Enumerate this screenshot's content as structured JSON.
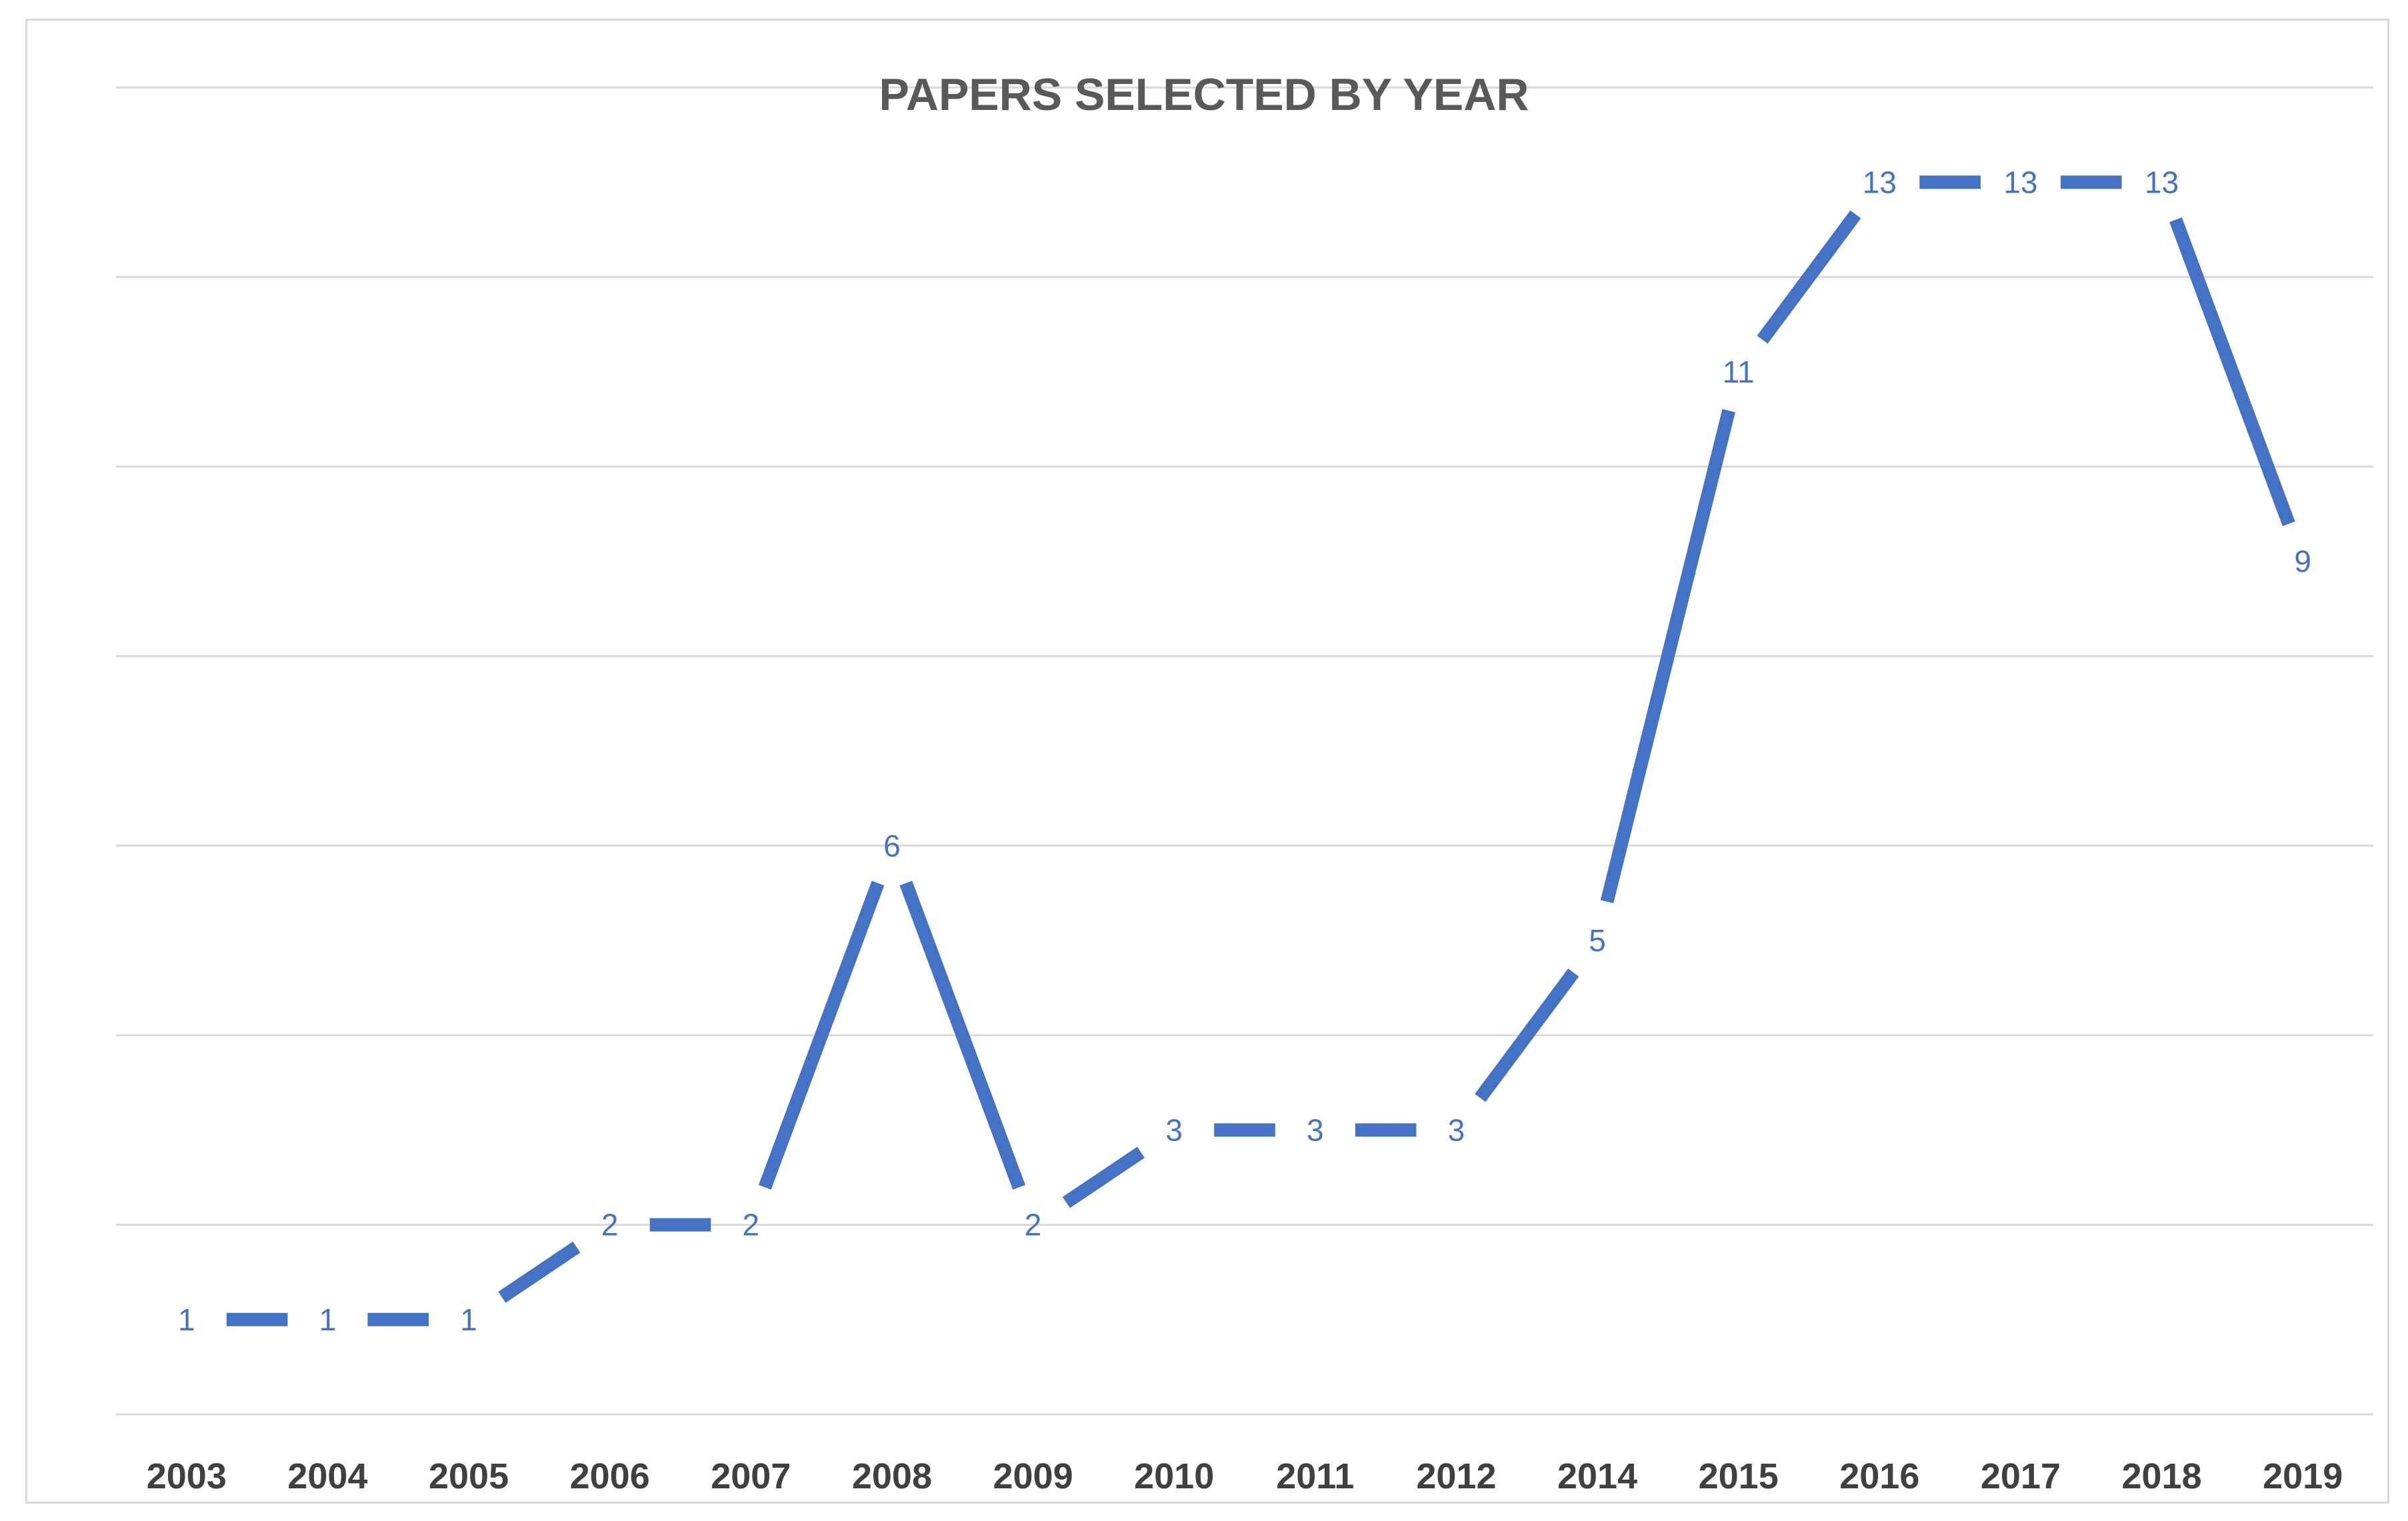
{
  "chart_data": {
    "type": "line",
    "title": "PAPERS SELECTED BY YEAR",
    "xlabel": "",
    "ylabel": "",
    "categories": [
      "2003",
      "2004",
      "2005",
      "2006",
      "2007",
      "2008",
      "2009",
      "2010",
      "2011",
      "2012",
      "2014",
      "2015",
      "2016",
      "2017",
      "2018",
      "2019"
    ],
    "series": [
      {
        "values": [
          1,
          1,
          1,
          2,
          2,
          6,
          2,
          3,
          3,
          3,
          5,
          11,
          13,
          13,
          13,
          9
        ]
      }
    ],
    "ylim": [
      0,
      14
    ],
    "grid": true,
    "legend": "none",
    "data_labels": true,
    "colors": {
      "line": "#4472c4",
      "data_label": "#4472c4",
      "grid": "#d9d9d9",
      "title": "#595959",
      "axis_text": "#404040"
    }
  }
}
